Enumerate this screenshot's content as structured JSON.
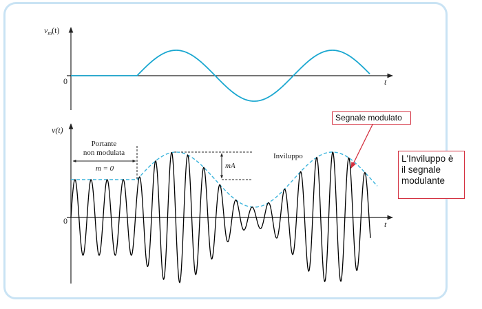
{
  "top_plot": {
    "y_label": "v",
    "y_label_sub": "m",
    "y_label_arg": "(t)",
    "origin": "0",
    "x_label": "t"
  },
  "bottom_plot": {
    "y_label": "v(t)",
    "origin": "0",
    "x_label": "t",
    "carrier_label_line1": "Portante",
    "carrier_label_line2": "non modulata",
    "m_label": "m = 0",
    "mA_label": "mA",
    "envelope_label": "Inviluppo"
  },
  "annotations": {
    "modulated_signal": "Segnale modulato",
    "envelope_note_line1": "L'Inviluppo è",
    "envelope_note_line2": "il segnale",
    "envelope_note_line3": "modulante"
  },
  "colors": {
    "modulating": "#1aa7d0",
    "envelope": "#3bb4dc",
    "signal": "#000000",
    "annotation": "#d32f3f",
    "frame": "#c9e3f4"
  }
}
